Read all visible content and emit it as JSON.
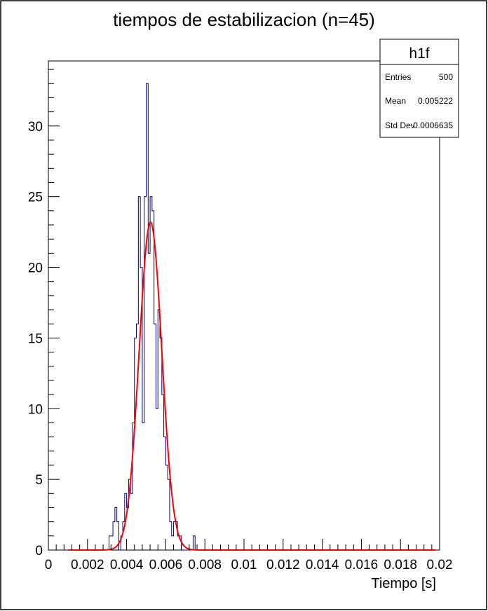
{
  "chart_data": {
    "type": "bar",
    "title": "tiempos de estabilizacion (n=45)",
    "xlabel": "Tiempo [s]",
    "ylabel": "",
    "xlim": [
      0,
      0.02
    ],
    "ylim": [
      0,
      34.6
    ],
    "x_tick_labels": [
      "0",
      "0.002",
      "0.004",
      "0.006",
      "0.008",
      "0.01",
      "0.012",
      "0.014",
      "0.016",
      "0.018",
      "0.02"
    ],
    "x_ticks": [
      0,
      0.002,
      0.004,
      0.006,
      0.008,
      0.01,
      0.012,
      0.014,
      0.016,
      0.018,
      0.02
    ],
    "y_tick_labels": [
      "0",
      "5",
      "10",
      "15",
      "20",
      "25",
      "30"
    ],
    "y_ticks": [
      0,
      5,
      10,
      15,
      20,
      25,
      30
    ],
    "grid": false,
    "histogram": {
      "series_color": "#000080",
      "bin_width": 0.0001,
      "bin_edges_start": 0.0031,
      "values": [
        1,
        1,
        2,
        3,
        2,
        0,
        1,
        2,
        4,
        3,
        5,
        4,
        9,
        15,
        16,
        25,
        20,
        9,
        25,
        33,
        21,
        25,
        24,
        16,
        10,
        17,
        15,
        11,
        8,
        6,
        5,
        2,
        1,
        2,
        2,
        1,
        1,
        0,
        0,
        0,
        0,
        0,
        0,
        1
      ]
    },
    "fit": {
      "type": "gaussian",
      "color": "#ff0000",
      "constant": 23.2,
      "mean": 0.00522,
      "sigma": 0.00058
    }
  },
  "stats_box": {
    "name": "h1f",
    "rows": [
      {
        "label": "Entries",
        "value": "500"
      },
      {
        "label": "Mean",
        "value": "0.005222"
      },
      {
        "label": "Std Dev",
        "value": "0.0006635"
      }
    ]
  }
}
